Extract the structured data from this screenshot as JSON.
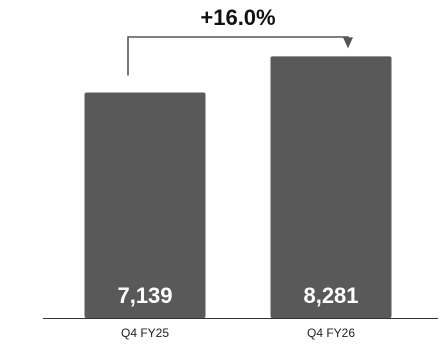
{
  "chart_data": {
    "type": "bar",
    "categories": [
      "Q4 FY25",
      "Q4 FY26"
    ],
    "values": [
      7139,
      8281
    ],
    "value_labels": [
      "7,139",
      "8,281"
    ],
    "change_label": "+16.0%",
    "title": "",
    "xlabel": "",
    "ylabel": "",
    "ylim": [
      0,
      8800
    ],
    "grid": false,
    "legend": "none",
    "colors": {
      "bar": "#595959",
      "arrow": "#555555",
      "axis": "#333333",
      "value_text": "#ffffff"
    }
  }
}
